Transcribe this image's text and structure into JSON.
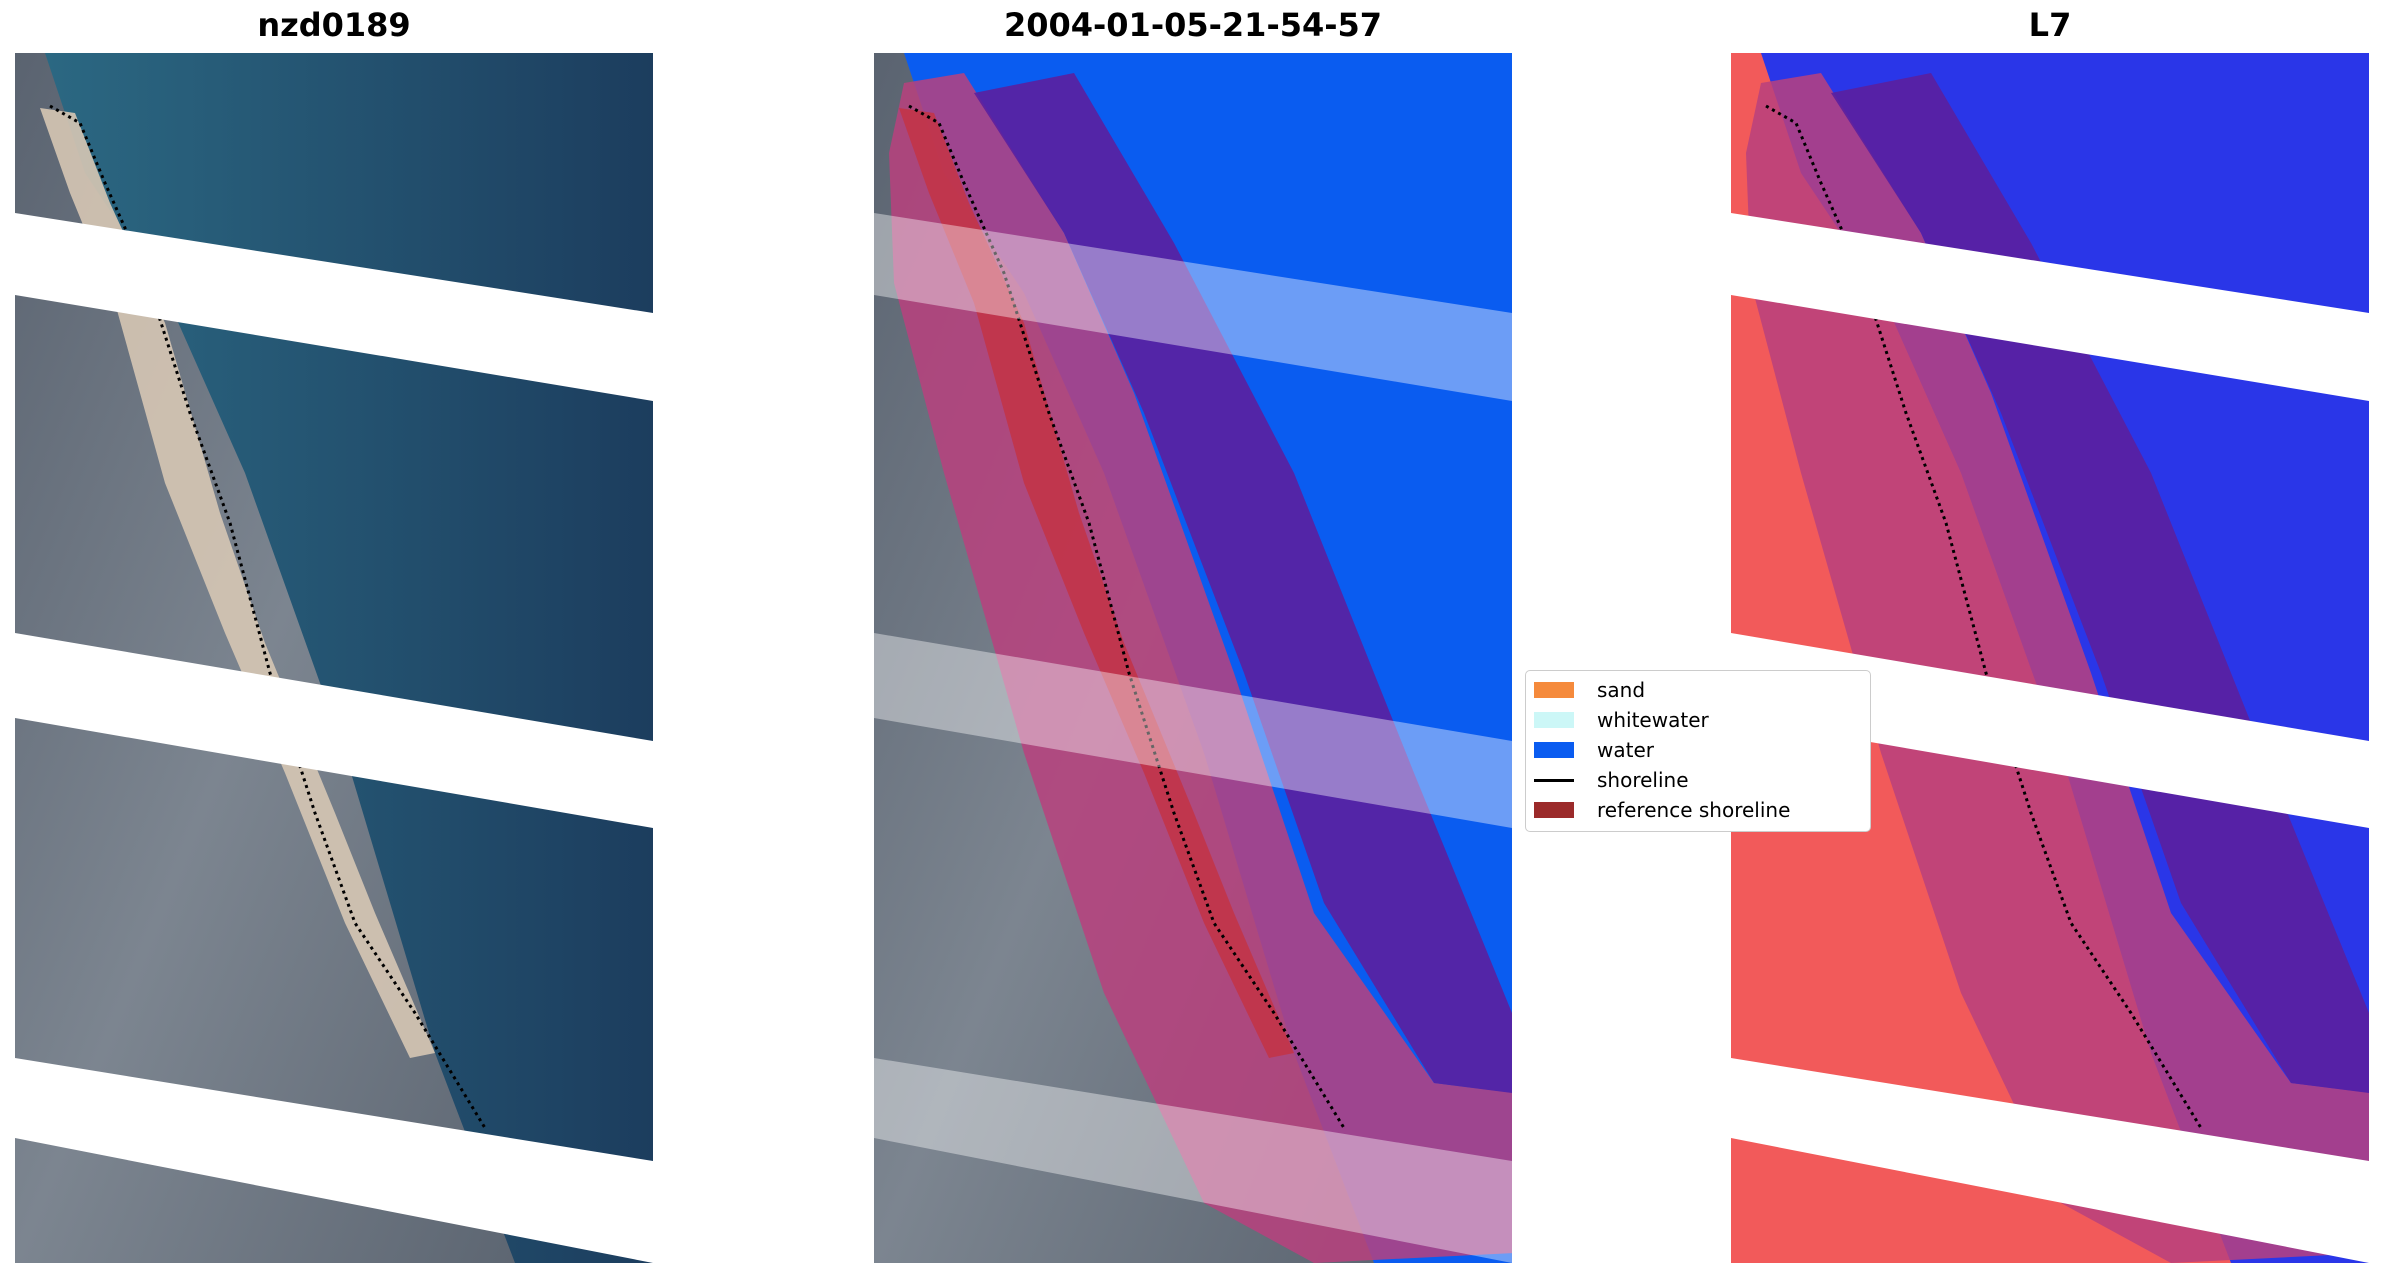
{
  "panels": [
    {
      "title": "nzd0189",
      "kind": "rgb"
    },
    {
      "title": "2004-01-05-21-54-57",
      "kind": "classified"
    },
    {
      "title": "L7",
      "kind": "index"
    }
  ],
  "legend": {
    "items": [
      {
        "label": "sand",
        "color": "#f58a3c",
        "kind": "patch"
      },
      {
        "label": "whitewater",
        "color": "#ccf7f7",
        "kind": "patch"
      },
      {
        "label": "water",
        "color": "#0a5cf0",
        "kind": "patch"
      },
      {
        "label": "shoreline",
        "color": "#000000",
        "kind": "line"
      },
      {
        "label": "reference shoreline",
        "color": "#9b2a2a",
        "kind": "patch"
      }
    ]
  },
  "colors": {
    "water_dark": "#1f4a6a",
    "land": "#6b7580",
    "sand": "#d9c8b4",
    "class_water": "#0a5cf0",
    "buffer": "#b8417e",
    "buffer_over_water": "#5b1f9e",
    "index_land": "#f25a5a",
    "index_water": "#2a36e8"
  }
}
